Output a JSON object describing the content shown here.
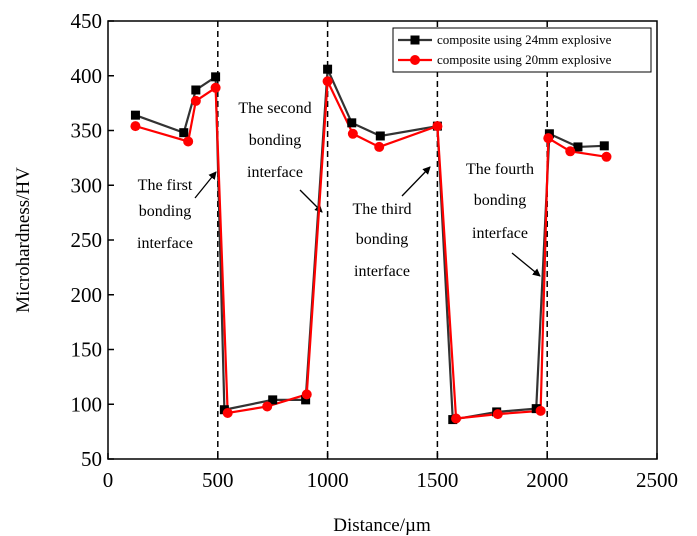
{
  "chart_data": {
    "type": "line",
    "xlabel": "Distance/µm",
    "ylabel": "Microhardness/HV",
    "xlim": [
      0,
      2500
    ],
    "ylim": [
      50,
      450
    ],
    "xticks": [
      0,
      500,
      1000,
      1500,
      2000,
      2500
    ],
    "yticks": [
      50,
      100,
      150,
      200,
      250,
      300,
      350,
      400,
      450
    ],
    "grid": false,
    "legend_position": "top-right",
    "vlines": [
      500,
      1000,
      1500,
      2000
    ],
    "series": [
      {
        "name": "composite using 24mm explosive",
        "color": "#333333",
        "marker": "square",
        "x": [
          125,
          345,
          400,
          490,
          530,
          750,
          900,
          1000,
          1110,
          1240,
          1500,
          1570,
          1770,
          1950,
          2010,
          2140,
          2260
        ],
        "y": [
          364,
          348,
          387,
          399,
          95,
          104,
          104,
          406,
          357,
          345,
          354,
          86,
          93,
          96,
          347,
          335,
          336
        ]
      },
      {
        "name": "composite using 20mm explosive",
        "color": "#ff0000",
        "marker": "circle",
        "x": [
          125,
          365,
          400,
          490,
          545,
          725,
          905,
          1000,
          1115,
          1235,
          1500,
          1585,
          1775,
          1970,
          2005,
          2105,
          2270
        ],
        "y": [
          354,
          340,
          377,
          389,
          92,
          98,
          109,
          395,
          347,
          335,
          354,
          87,
          91,
          94,
          343,
          331,
          326
        ]
      }
    ],
    "annotations": [
      {
        "lines": [
          "The first",
          "bonding",
          "interface"
        ],
        "x": 475,
        "y": 300
      },
      {
        "lines": [
          "The second",
          "bonding",
          "interface"
        ],
        "x": 975,
        "y": 265
      },
      {
        "lines": [
          "The third",
          "bonding",
          "interface"
        ],
        "x": 1475,
        "y": 320
      },
      {
        "lines": [
          "The fourth",
          "bonding",
          "interface"
        ],
        "x": 1975,
        "y": 220
      }
    ]
  }
}
